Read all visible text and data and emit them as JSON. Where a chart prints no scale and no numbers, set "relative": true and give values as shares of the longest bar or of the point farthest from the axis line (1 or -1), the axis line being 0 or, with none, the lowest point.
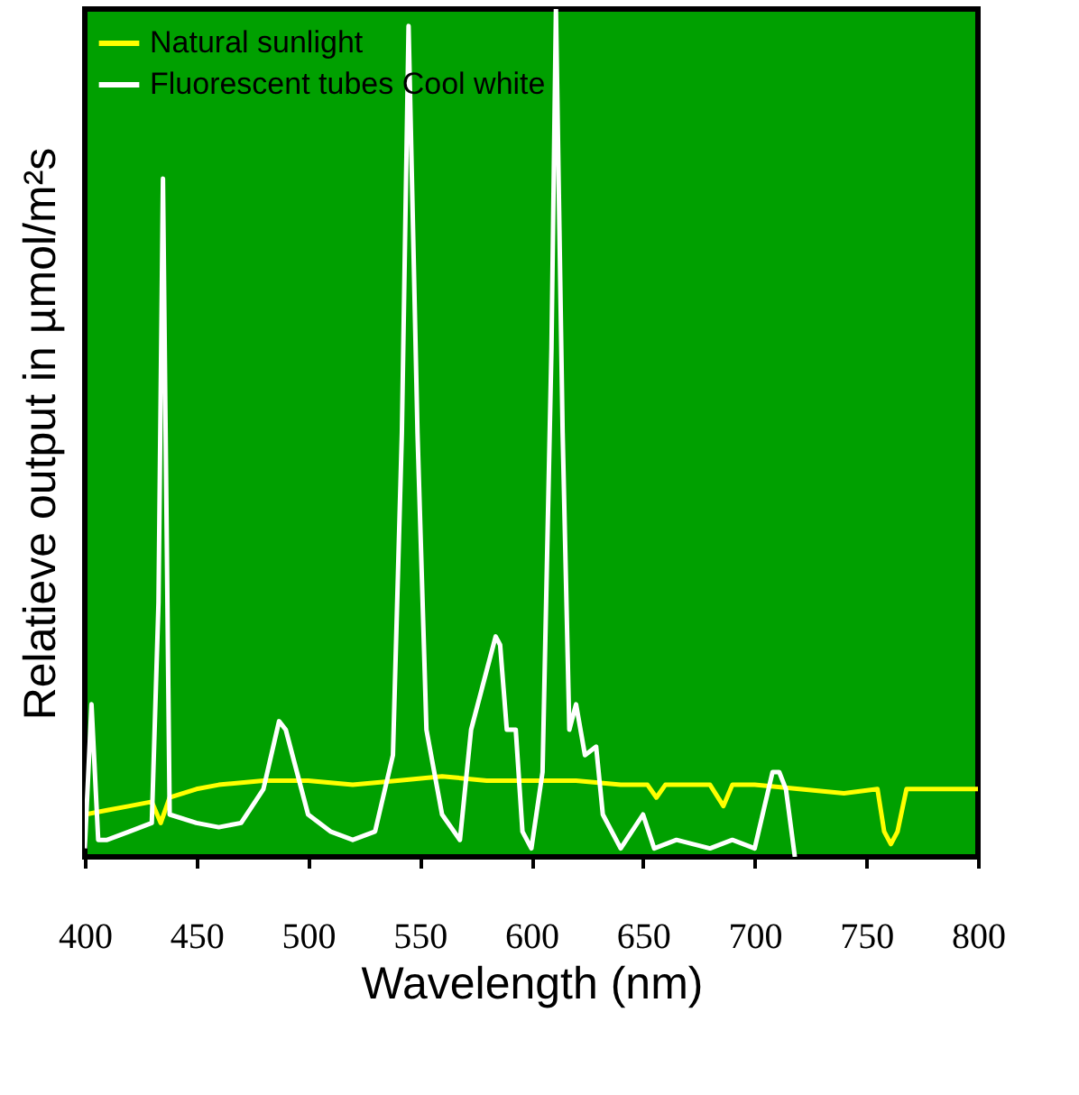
{
  "chart_data": {
    "type": "line",
    "relative": true,
    "xlabel": "Wavelength (nm)",
    "ylabel": "Relatieve output in µmol/m²s",
    "xlim": [
      400,
      800
    ],
    "xticks": [
      400,
      450,
      500,
      550,
      600,
      650,
      700,
      750,
      800
    ],
    "grid": false,
    "legend": "top left",
    "marker": "none",
    "line_style": "solid",
    "series": [
      {
        "name": "Natural sunlight",
        "color": "#ffff00",
        "x": [
          400,
          410,
          420,
          430,
          434,
          438,
          450,
          460,
          480,
          500,
          520,
          540,
          560,
          580,
          600,
          620,
          640,
          652,
          656,
          660,
          680,
          686,
          690,
          700,
          720,
          740,
          755,
          758,
          761,
          764,
          768,
          780,
          800
        ],
        "values": [
          0.05,
          0.055,
          0.06,
          0.065,
          0.04,
          0.07,
          0.08,
          0.085,
          0.09,
          0.09,
          0.085,
          0.09,
          0.095,
          0.09,
          0.09,
          0.09,
          0.085,
          0.085,
          0.07,
          0.085,
          0.085,
          0.06,
          0.085,
          0.085,
          0.08,
          0.075,
          0.08,
          0.03,
          0.015,
          0.03,
          0.08,
          0.08,
          0.08
        ]
      },
      {
        "name": "Fluorescent tubes Cool white",
        "color": "#ffffff",
        "x": [
          400,
          403,
          406,
          410,
          420,
          430,
          433,
          435,
          438,
          450,
          460,
          470,
          480,
          487,
          490,
          495,
          500,
          510,
          520,
          530,
          538,
          542,
          545,
          549,
          553,
          560,
          568,
          573,
          578,
          584,
          586,
          589,
          593,
          596,
          600,
          605,
          609,
          611,
          614,
          617,
          620,
          624,
          629,
          632,
          640,
          650,
          655,
          665,
          680,
          690,
          700,
          708,
          711,
          714,
          718
        ],
        "values": [
          0.01,
          0.18,
          0.02,
          0.02,
          0.03,
          0.04,
          0.3,
          0.8,
          0.05,
          0.04,
          0.035,
          0.04,
          0.08,
          0.16,
          0.15,
          0.1,
          0.05,
          0.03,
          0.02,
          0.03,
          0.12,
          0.5,
          0.98,
          0.5,
          0.15,
          0.05,
          0.02,
          0.15,
          0.2,
          0.26,
          0.25,
          0.15,
          0.15,
          0.03,
          0.01,
          0.1,
          0.6,
          1.0,
          0.5,
          0.15,
          0.18,
          0.12,
          0.13,
          0.05,
          0.01,
          0.05,
          0.01,
          0.02,
          0.01,
          0.02,
          0.01,
          0.1,
          0.1,
          0.08,
          0.0
        ]
      }
    ]
  }
}
